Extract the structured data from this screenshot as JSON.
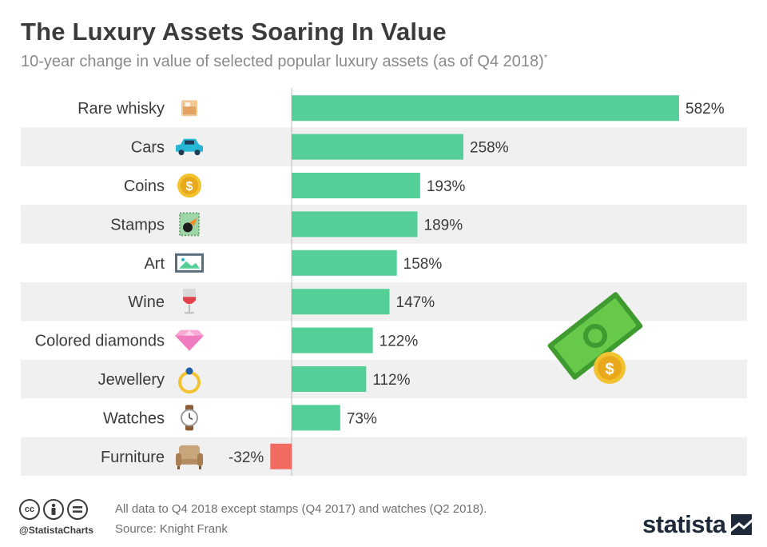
{
  "title": "The Luxury Assets Soaring In Value",
  "subtitle": "10-year change in value of selected popular luxury assets (as of Q4 2018)",
  "subtitle_footnote": "*",
  "chart_data": {
    "type": "bar",
    "orientation": "horizontal",
    "categories": [
      "Rare whisky",
      "Cars",
      "Coins",
      "Stamps",
      "Art",
      "Wine",
      "Colored diamonds",
      "Jewellery",
      "Watches",
      "Furniture"
    ],
    "values": [
      582,
      258,
      193,
      189,
      158,
      147,
      122,
      112,
      73,
      -32
    ],
    "value_labels": [
      "582%",
      "258%",
      "193%",
      "189%",
      "158%",
      "147%",
      "122%",
      "112%",
      "73%",
      "-32%"
    ],
    "unit": "%",
    "icons": [
      "whisky-glass-icon",
      "car-icon",
      "coin-icon",
      "stamp-icon",
      "painting-icon",
      "wine-glass-icon",
      "diamond-icon",
      "ring-icon",
      "watch-icon",
      "armchair-icon"
    ],
    "colors": {
      "positive": "#55cf98",
      "negative": "#f26b63",
      "stripe": "#f0f0f0"
    }
  },
  "footer": {
    "handle": "@StatistaCharts",
    "note": "All data to Q4 2018 except stamps (Q4 2017) and watches (Q2 2018).",
    "source": "Source: Knight Frank",
    "brand": "statista",
    "cc_icons": [
      "cc-icon",
      "by-icon",
      "nd-icon"
    ]
  }
}
